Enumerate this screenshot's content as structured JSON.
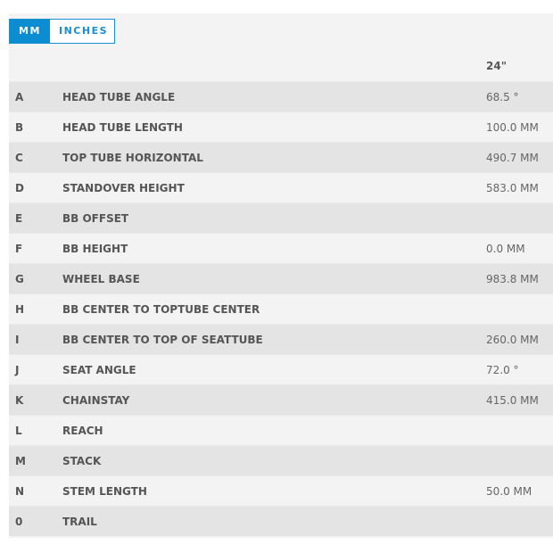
{
  "units": {
    "mm": "MM",
    "inches": "INCHES",
    "active": "MM",
    "accent": "#0d8dd1"
  },
  "size_header": "24\"",
  "rows": [
    {
      "letter": "A",
      "name": "HEAD TUBE ANGLE",
      "value": "68.5 °"
    },
    {
      "letter": "B",
      "name": "HEAD TUBE LENGTH",
      "value": "100.0 MM"
    },
    {
      "letter": "C",
      "name": "TOP TUBE HORIZONTAL",
      "value": "490.7 MM"
    },
    {
      "letter": "D",
      "name": "STANDOVER HEIGHT",
      "value": "583.0 MM"
    },
    {
      "letter": "E",
      "name": "BB OFFSET",
      "value": ""
    },
    {
      "letter": "F",
      "name": "BB HEIGHT",
      "value": "0.0 MM"
    },
    {
      "letter": "G",
      "name": "WHEEL BASE",
      "value": "983.8 MM"
    },
    {
      "letter": "H",
      "name": "BB CENTER TO TOPTUBE CENTER",
      "value": ""
    },
    {
      "letter": "I",
      "name": "BB CENTER TO TOP OF SEATTUBE",
      "value": "260.0 MM"
    },
    {
      "letter": "J",
      "name": "SEAT ANGLE",
      "value": "72.0 °"
    },
    {
      "letter": "K",
      "name": "CHAINSTAY",
      "value": "415.0 MM"
    },
    {
      "letter": "L",
      "name": "REACH",
      "value": ""
    },
    {
      "letter": "M",
      "name": "STACK",
      "value": ""
    },
    {
      "letter": "N",
      "name": "STEM LENGTH",
      "value": "50.0 MM"
    },
    {
      "letter": "0",
      "name": "TRAIL",
      "value": ""
    }
  ]
}
